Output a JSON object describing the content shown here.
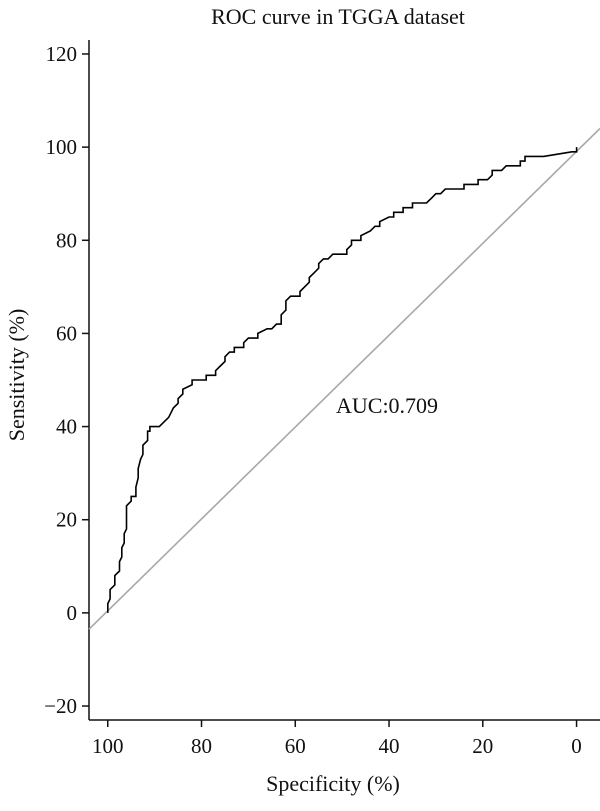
{
  "chart_data": {
    "type": "line",
    "title": "ROC curve in TGGA dataset",
    "xlabel": "Specificity (%)",
    "ylabel": "Sensitivity (%)",
    "x_reversed": true,
    "xlim": [
      104,
      -5
    ],
    "ylim": [
      -23,
      123
    ],
    "xticks": [
      100,
      80,
      60,
      40,
      20,
      0
    ],
    "xtick_labels": [
      "100",
      "80",
      "60",
      "40",
      "20",
      "0"
    ],
    "yticks": [
      -20,
      0,
      20,
      40,
      60,
      80,
      100,
      120
    ],
    "ytick_labels": [
      "−20",
      "0",
      "20",
      "40",
      "60",
      "80",
      "100",
      "120"
    ],
    "grid": false,
    "annotation": "AUC:0.709",
    "colors": {
      "roc_curve": "#000000",
      "reference_line": "#a8a8a8",
      "axes": "#111111"
    },
    "series": [
      {
        "points": [
          [
            100,
            0
          ],
          [
            100,
            2
          ],
          [
            99.5,
            3
          ],
          [
            99.5,
            5
          ],
          [
            98.5,
            6
          ],
          [
            98.5,
            8
          ],
          [
            97.5,
            9
          ],
          [
            97.5,
            11
          ],
          [
            97,
            12
          ],
          [
            97,
            14
          ],
          [
            96.5,
            15
          ],
          [
            96.5,
            17
          ],
          [
            96,
            18
          ],
          [
            96,
            23
          ],
          [
            95,
            24
          ],
          [
            95,
            25
          ],
          [
            94,
            25
          ],
          [
            94,
            27
          ],
          [
            93.5,
            29
          ],
          [
            93.5,
            31
          ],
          [
            93,
            33
          ],
          [
            92.5,
            34
          ],
          [
            92.5,
            36
          ],
          [
            91.5,
            37
          ],
          [
            91.5,
            39
          ],
          [
            91,
            39
          ],
          [
            91,
            40
          ],
          [
            89,
            40
          ],
          [
            88,
            41
          ],
          [
            87,
            42
          ],
          [
            86,
            44
          ],
          [
            85,
            45
          ],
          [
            85,
            46
          ],
          [
            84,
            47
          ],
          [
            84,
            48
          ],
          [
            82,
            49
          ],
          [
            82,
            50
          ],
          [
            79,
            50
          ],
          [
            79,
            51
          ],
          [
            77,
            51
          ],
          [
            77,
            52
          ],
          [
            76,
            53
          ],
          [
            75,
            54
          ],
          [
            75,
            55
          ],
          [
            74,
            56
          ],
          [
            73,
            56
          ],
          [
            73,
            57
          ],
          [
            71,
            57
          ],
          [
            71,
            58
          ],
          [
            70,
            59
          ],
          [
            68,
            59
          ],
          [
            68,
            60
          ],
          [
            66,
            61
          ],
          [
            65,
            61
          ],
          [
            64,
            62
          ],
          [
            63,
            62
          ],
          [
            63,
            64
          ],
          [
            62,
            65
          ],
          [
            62,
            67
          ],
          [
            61,
            68
          ],
          [
            59,
            68
          ],
          [
            59,
            69
          ],
          [
            58,
            70
          ],
          [
            57,
            71
          ],
          [
            57,
            72
          ],
          [
            56,
            73
          ],
          [
            55,
            74
          ],
          [
            55,
            75
          ],
          [
            54,
            76
          ],
          [
            53,
            76
          ],
          [
            52,
            77
          ],
          [
            49,
            77
          ],
          [
            49,
            78
          ],
          [
            48,
            79
          ],
          [
            48,
            80
          ],
          [
            46,
            80
          ],
          [
            46,
            81
          ],
          [
            44,
            82
          ],
          [
            43,
            83
          ],
          [
            42,
            83
          ],
          [
            42,
            84
          ],
          [
            40,
            85
          ],
          [
            39,
            85
          ],
          [
            39,
            86
          ],
          [
            37,
            86
          ],
          [
            37,
            87
          ],
          [
            35,
            87
          ],
          [
            35,
            88
          ],
          [
            32,
            88
          ],
          [
            31,
            89
          ],
          [
            30,
            90
          ],
          [
            29,
            90
          ],
          [
            28,
            91
          ],
          [
            24,
            91
          ],
          [
            24,
            92
          ],
          [
            21,
            92
          ],
          [
            21,
            93
          ],
          [
            19,
            93
          ],
          [
            18,
            94
          ],
          [
            18,
            95
          ],
          [
            16,
            95
          ],
          [
            15,
            96
          ],
          [
            12,
            96
          ],
          [
            12,
            97
          ],
          [
            11,
            97
          ],
          [
            11,
            98
          ],
          [
            7,
            98
          ],
          [
            7,
            98
          ],
          [
            1,
            99
          ],
          [
            0,
            99
          ],
          [
            0,
            100
          ]
        ]
      },
      {
        "kind": "reference",
        "points": [
          [
            104,
            -3.5
          ],
          [
            -5,
            104
          ]
        ]
      }
    ]
  }
}
